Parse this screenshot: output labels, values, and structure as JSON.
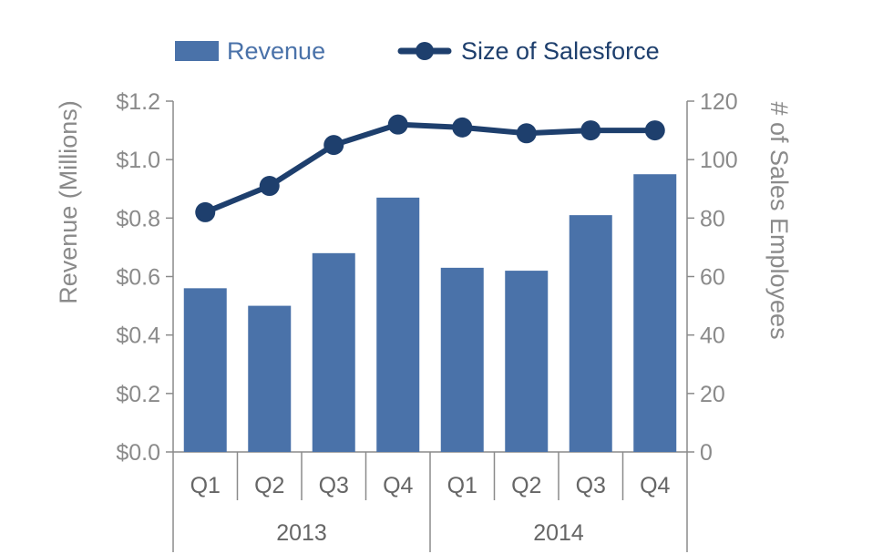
{
  "chart_data": {
    "type": "bar",
    "legend": {
      "placement": "top",
      "items": [
        {
          "label": "Revenue",
          "kind": "bar",
          "color": "#4a72a9"
        },
        {
          "label": "Size of Salesforce",
          "kind": "line",
          "color": "#1e3f6d"
        }
      ]
    },
    "categories": [
      "Q1",
      "Q2",
      "Q3",
      "Q4",
      "Q1",
      "Q2",
      "Q3",
      "Q4"
    ],
    "groups": [
      {
        "label": "2013",
        "count": 4
      },
      {
        "label": "2014",
        "count": 4
      }
    ],
    "series": [
      {
        "name": "Revenue",
        "type": "bar",
        "axis": "left",
        "color": "#4a72a9",
        "values": [
          0.56,
          0.5,
          0.68,
          0.87,
          0.63,
          0.62,
          0.81,
          0.95
        ]
      },
      {
        "name": "Size of Salesforce",
        "type": "line",
        "axis": "right",
        "color": "#1e3f6d",
        "values": [
          82,
          91,
          105,
          112,
          111,
          109,
          110,
          110
        ]
      }
    ],
    "y_left": {
      "label": "Revenue (Millions)",
      "ylim": [
        0,
        1.2
      ],
      "ticks": [
        0,
        0.2,
        0.4,
        0.6,
        0.8,
        1.0,
        1.2
      ],
      "tick_labels": [
        "$0.0",
        "$0.2",
        "$0.4",
        "$0.6",
        "$0.8",
        "$1.0",
        "$1.2"
      ]
    },
    "y_right": {
      "label": "# of Sales Employees",
      "ylim": [
        0,
        120
      ],
      "ticks": [
        0,
        20,
        40,
        60,
        80,
        100,
        120
      ],
      "tick_labels": [
        "0",
        "20",
        "40",
        "60",
        "80",
        "100",
        "120"
      ]
    },
    "grid": false,
    "colors": {
      "axis": "#8a8a8a",
      "bar": "#4a72a9",
      "line": "#1e3f6d",
      "legend_bar_text": "#4a72a9",
      "legend_line_text": "#1e3f6d"
    }
  }
}
